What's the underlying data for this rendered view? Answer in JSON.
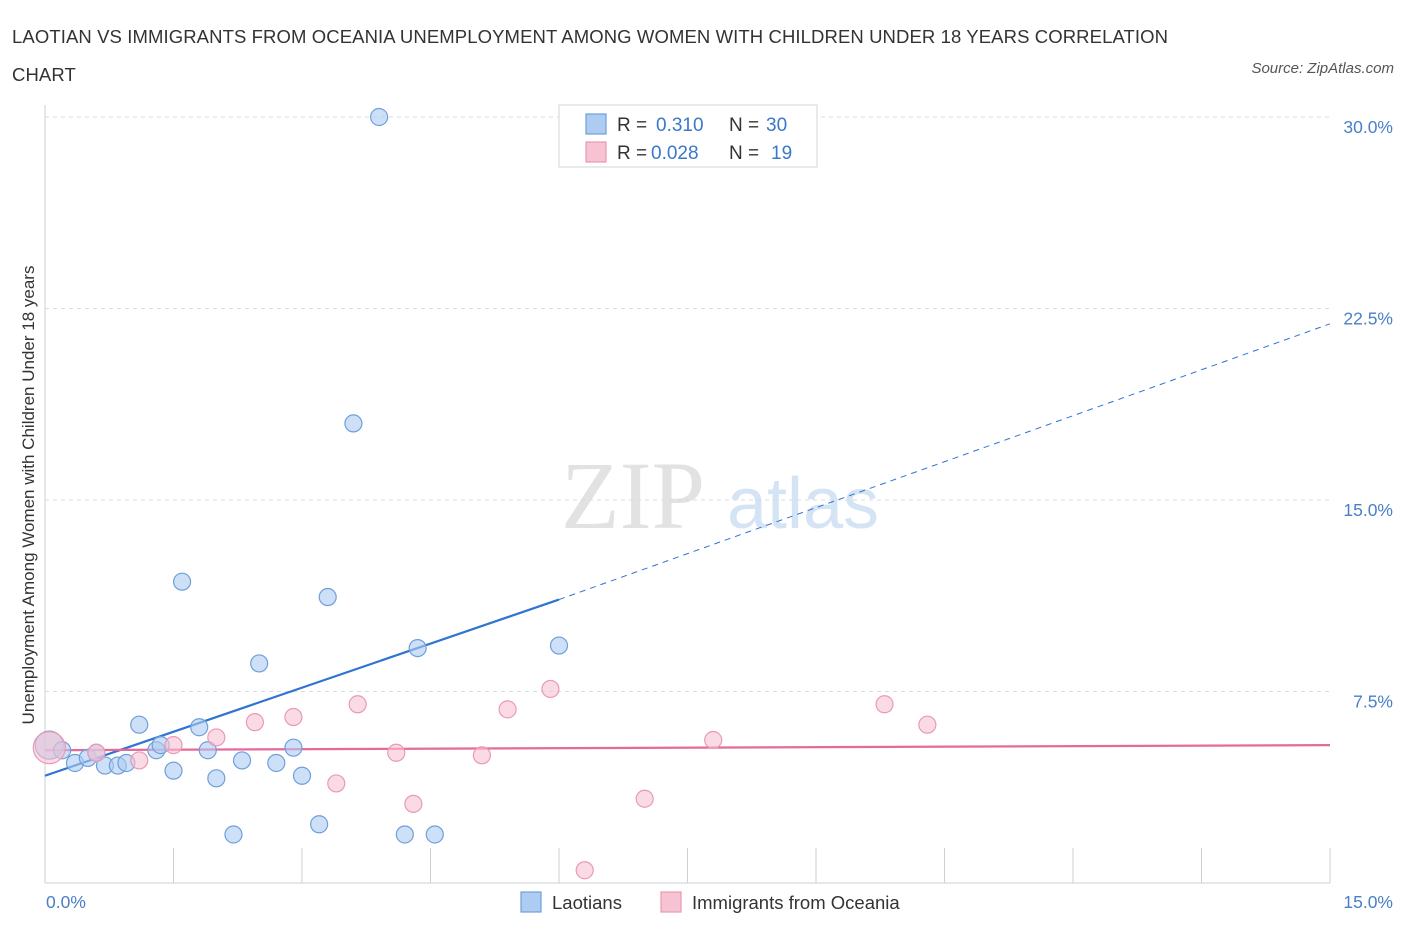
{
  "title": "LAOTIAN VS IMMIGRANTS FROM OCEANIA UNEMPLOYMENT AMONG WOMEN WITH CHILDREN UNDER 18 YEARS CORRELATION CHART",
  "source": "Source: ZipAtlas.com",
  "watermark": {
    "zip": "ZIP",
    "atlas": "atlas"
  },
  "legend": {
    "r_label": "R =",
    "n_label": "N =",
    "rows": [
      {
        "name": "Laotians",
        "r": "0.310",
        "n": "30"
      },
      {
        "name": "Immigrants from Oceania",
        "r": "0.028",
        "n": "19"
      }
    ]
  },
  "colors": {
    "blue_fill": "#aeccf2",
    "blue_stroke": "#6f9fdb",
    "blue_line": "#2f74d0",
    "pink_fill": "#f7c2d2",
    "pink_stroke": "#e99ab4",
    "pink_line": "#e56a9a",
    "grid": "#d5dbe6",
    "axis_text": "#4a7fc7"
  },
  "chart_data": {
    "type": "scatter",
    "title": "LAOTIAN VS IMMIGRANTS FROM OCEANIA UNEMPLOYMENT AMONG WOMEN WITH CHILDREN UNDER 18 YEARS CORRELATION CHART",
    "xlabel": "",
    "ylabel": "Unemployment Among Women with Children Under 18 years",
    "xlim": [
      0,
      15
    ],
    "ylim": [
      0,
      30
    ],
    "x_tick_labels": [
      "0.0%",
      "15.0%"
    ],
    "y_ticks": [
      7.5,
      15,
      22.5,
      30
    ],
    "y_tick_labels": [
      "7.5%",
      "15.0%",
      "22.5%",
      "30.0%"
    ],
    "series": [
      {
        "name": "Laotians",
        "R": 0.31,
        "N": 30,
        "points": [
          [
            0.05,
            5.4
          ],
          [
            0.2,
            5.2
          ],
          [
            0.35,
            4.7
          ],
          [
            0.5,
            4.9
          ],
          [
            0.6,
            5.1
          ],
          [
            0.7,
            4.6
          ],
          [
            0.85,
            4.6
          ],
          [
            0.95,
            4.7
          ],
          [
            1.1,
            6.2
          ],
          [
            1.3,
            5.2
          ],
          [
            1.35,
            5.4
          ],
          [
            1.5,
            4.4
          ],
          [
            1.6,
            11.8
          ],
          [
            1.8,
            6.1
          ],
          [
            1.9,
            5.2
          ],
          [
            2.0,
            4.1
          ],
          [
            2.2,
            1.9
          ],
          [
            2.3,
            4.8
          ],
          [
            2.5,
            8.6
          ],
          [
            2.7,
            4.7
          ],
          [
            2.9,
            5.3
          ],
          [
            3.0,
            4.2
          ],
          [
            3.2,
            2.3
          ],
          [
            3.3,
            11.2
          ],
          [
            3.6,
            18.0
          ],
          [
            3.9,
            30.0
          ],
          [
            4.2,
            1.9
          ],
          [
            4.35,
            9.2
          ],
          [
            4.55,
            1.9
          ],
          [
            6.0,
            9.3
          ]
        ],
        "trend": {
          "x": [
            0,
            6.0
          ],
          "y": [
            4.2,
            11.1
          ],
          "extended_to": [
            15,
            21.9
          ]
        }
      },
      {
        "name": "Immigrants from Oceania",
        "R": 0.028,
        "N": 19,
        "points": [
          [
            0.05,
            5.3
          ],
          [
            0.6,
            5.1
          ],
          [
            1.1,
            4.8
          ],
          [
            1.5,
            5.4
          ],
          [
            2.0,
            5.7
          ],
          [
            2.45,
            6.3
          ],
          [
            2.9,
            6.5
          ],
          [
            3.4,
            3.9
          ],
          [
            3.65,
            7.0
          ],
          [
            4.1,
            5.1
          ],
          [
            4.3,
            3.1
          ],
          [
            5.1,
            5.0
          ],
          [
            5.4,
            6.8
          ],
          [
            5.9,
            7.6
          ],
          [
            6.3,
            0.5
          ],
          [
            7.0,
            3.3
          ],
          [
            7.8,
            5.6
          ],
          [
            9.8,
            7.0
          ],
          [
            10.3,
            6.2
          ]
        ],
        "trend": {
          "x": [
            0,
            15
          ],
          "y": [
            5.2,
            5.4
          ]
        }
      }
    ]
  }
}
